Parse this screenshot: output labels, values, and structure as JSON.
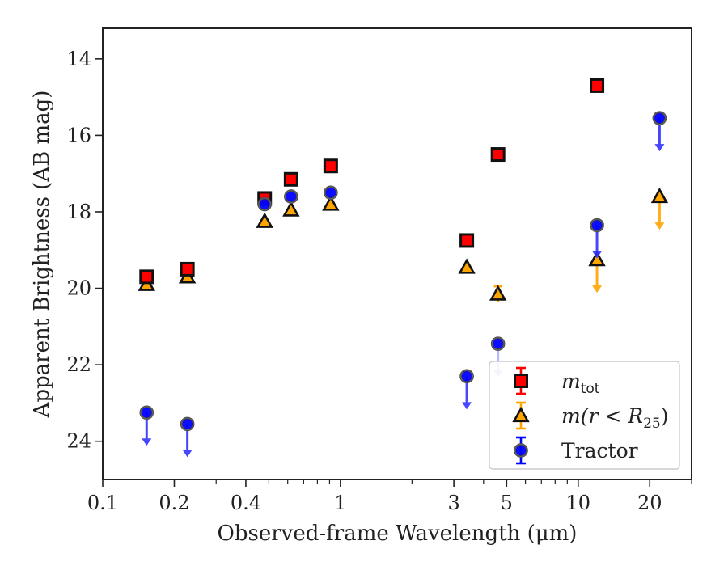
{
  "chart_data": {
    "type": "scatter",
    "xlabel": "Observed-frame Wavelength (μm)",
    "ylabel": "Apparent Brightness (AB mag)",
    "xscale": "log",
    "xlim": [
      0.1,
      30
    ],
    "ylim": [
      25,
      13.2
    ],
    "y_inverted": true,
    "grid": false,
    "legend_position": "lower-right",
    "x_ticks": [
      {
        "value": 0.1,
        "label": "0.1"
      },
      {
        "value": 0.2,
        "label": "0.2"
      },
      {
        "value": 0.4,
        "label": "0.4"
      },
      {
        "value": 1,
        "label": "1"
      },
      {
        "value": 3,
        "label": "3"
      },
      {
        "value": 5,
        "label": "5"
      },
      {
        "value": 10,
        "label": "10"
      },
      {
        "value": 20,
        "label": "20"
      }
    ],
    "y_ticks": [
      {
        "value": 14,
        "label": "14"
      },
      {
        "value": 16,
        "label": "16"
      },
      {
        "value": 18,
        "label": "18"
      },
      {
        "value": 20,
        "label": "20"
      },
      {
        "value": 22,
        "label": "22"
      },
      {
        "value": 24,
        "label": "24"
      }
    ],
    "series": [
      {
        "name": "m_tot",
        "label_main": "m",
        "label_sub": "tot",
        "marker": "square",
        "color": "#ff0000",
        "edge": "#111111",
        "points": [
          {
            "x": 0.153,
            "y": 19.7
          },
          {
            "x": 0.227,
            "y": 19.5
          },
          {
            "x": 0.48,
            "y": 17.65
          },
          {
            "x": 0.62,
            "y": 17.15
          },
          {
            "x": 0.91,
            "y": 16.8
          },
          {
            "x": 3.4,
            "y": 18.75
          },
          {
            "x": 4.6,
            "y": 16.5
          },
          {
            "x": 12.0,
            "y": 14.7
          }
        ]
      },
      {
        "name": "m(r < R25)",
        "label_main": "m(r < R",
        "label_sub": "25",
        "label_tail": ")",
        "marker": "triangle",
        "color": "#ffa500",
        "edge": "#111111",
        "points": [
          {
            "x": 0.153,
            "y": 19.9,
            "upper_limit": false
          },
          {
            "x": 0.227,
            "y": 19.7,
            "upper_limit": false
          },
          {
            "x": 0.48,
            "y": 18.25,
            "upper_limit": false
          },
          {
            "x": 0.62,
            "y": 17.95,
            "upper_limit": false
          },
          {
            "x": 0.91,
            "y": 17.8,
            "upper_limit": false
          },
          {
            "x": 3.4,
            "y": 19.45,
            "upper_limit": false
          },
          {
            "x": 4.6,
            "y": 20.15,
            "upper_limit": false,
            "err": 0.2
          },
          {
            "x": 12.0,
            "y": 19.25,
            "upper_limit": true
          },
          {
            "x": 22.0,
            "y": 17.6,
            "upper_limit": true
          }
        ]
      },
      {
        "name": "Tractor",
        "label_main": "Tractor",
        "marker": "circle",
        "color": "#0000ff",
        "edge": "#444444",
        "points": [
          {
            "x": 0.153,
            "y": 23.25,
            "upper_limit": true
          },
          {
            "x": 0.227,
            "y": 23.55,
            "upper_limit": true
          },
          {
            "x": 0.48,
            "y": 17.8,
            "upper_limit": false
          },
          {
            "x": 0.62,
            "y": 17.6,
            "upper_limit": false
          },
          {
            "x": 0.91,
            "y": 17.5,
            "upper_limit": false
          },
          {
            "x": 3.4,
            "y": 22.3,
            "upper_limit": true
          },
          {
            "x": 4.6,
            "y": 21.45,
            "upper_limit": true,
            "faded": true
          },
          {
            "x": 12.0,
            "y": 18.35,
            "upper_limit": true
          },
          {
            "x": 22.0,
            "y": 15.55,
            "upper_limit": true
          }
        ]
      }
    ]
  }
}
